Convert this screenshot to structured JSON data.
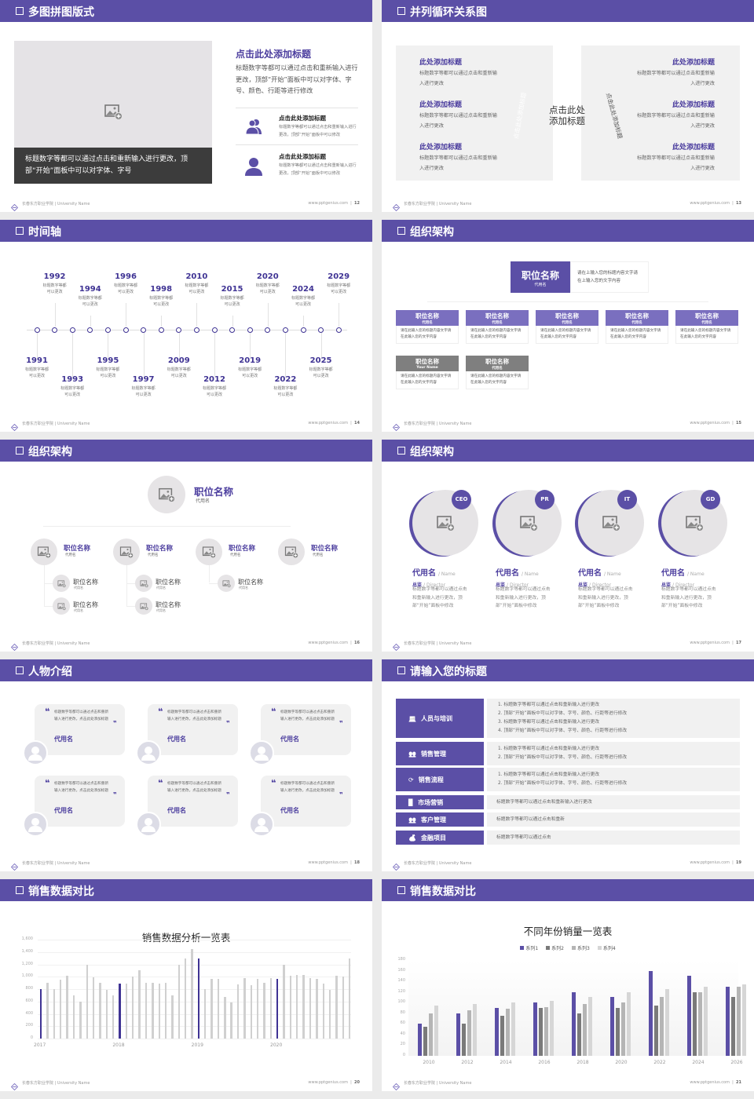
{
  "colors": {
    "header": "#5b4fa6",
    "accent_text": "#4b3d9e",
    "gray_box": "#7f7f7f",
    "panel": "#f1f1f1"
  },
  "footer": {
    "school": "长春东方职业学院 | University Name",
    "site": "www.pptgenius.com"
  },
  "slides": [
    {
      "title": "多图拼图版式",
      "page": "12",
      "caption": "标题数字等都可以通过点击和重新输入进行更改，顶部“开始”面板中可以对字体、字号",
      "heading": "点击此处添加标题",
      "paragraph": "标题数字等都可以通过点击和重新输入进行更改，顶部“开始”面板中可以对字体、字号、颜色、行距等进行修改",
      "items": [
        {
          "icon": "group-icon",
          "title": "点击此处添加标题",
          "desc": "标题数字等都可以通过点击和重新输入进行更改，顶部“开始”面板中可以修改"
        },
        {
          "icon": "person-icon",
          "title": "点击此处添加标题",
          "desc": "标题数字等都可以通过点击和重新输入进行更改，顶部“开始”面板中可以修改"
        }
      ]
    },
    {
      "title": "并列循环关系图",
      "page": "13",
      "center": "点击此处添加标题",
      "arc_left": "点击此处添加标题",
      "arc_right": "点击此处添加标题",
      "left_items": [
        {
          "title": "此处添加标题",
          "desc": "标题数字等都可以通过点击和重新输入进行更改"
        },
        {
          "title": "此处添加标题",
          "desc": "标题数字等都可以通过点击和重新输入进行更改"
        },
        {
          "title": "此处添加标题",
          "desc": "标题数字等都可以通过点击和重新输入进行更改"
        }
      ],
      "right_items": [
        {
          "title": "此处添加标题",
          "desc": "标题数字等都可以通过点击和重新输入进行更改"
        },
        {
          "title": "此处添加标题",
          "desc": "标题数字等都可以通过点击和重新输入进行更改"
        },
        {
          "title": "此处添加标题",
          "desc": "标题数字等都可以通过点击和重新输入进行更改"
        }
      ]
    },
    {
      "title": "时间轴",
      "page": "14",
      "events": [
        {
          "year": "1991",
          "desc": "标题数字等都可以更改"
        },
        {
          "year": "1992",
          "desc": "标题数字等都可以更改"
        },
        {
          "year": "1993",
          "desc": "标题数字等都可以更改"
        },
        {
          "year": "1994",
          "desc": "标题数字等都可以更改"
        },
        {
          "year": "1995",
          "desc": "标题数字等都可以更改"
        },
        {
          "year": "1996",
          "desc": "标题数字等都可以更改"
        },
        {
          "year": "1997",
          "desc": "标题数字等都可以更改"
        },
        {
          "year": "1998",
          "desc": "标题数字等都可以更改"
        },
        {
          "year": "2009",
          "desc": "标题数字等都可以更改"
        },
        {
          "year": "2010",
          "desc": "标题数字等都可以更改"
        },
        {
          "year": "2012",
          "desc": "标题数字等都可以更改"
        },
        {
          "year": "2015",
          "desc": "标题数字等都可以更改"
        },
        {
          "year": "2019",
          "desc": "标题数字等都可以更改"
        },
        {
          "year": "2020",
          "desc": "标题数字等都可以更改"
        },
        {
          "year": "2022",
          "desc": "标题数字等都可以更改"
        },
        {
          "year": "2024",
          "desc": "标题数字等都可以更改"
        },
        {
          "year": "2025",
          "desc": "标题数字等都可以更改"
        },
        {
          "year": "2029",
          "desc": "标题数字等都可以更改"
        }
      ]
    },
    {
      "title": "组织架构",
      "page": "15",
      "top": {
        "title": "职位名称",
        "sub": "代用名",
        "desc": "请在上输入您的标题内容文字请在上输入您的文字内容"
      },
      "boxes": [
        {
          "title": "职位名称",
          "sub": "代用名",
          "desc": "请在此输入您的标题内容文字请在此输入您的文字内容",
          "style": "purple"
        },
        {
          "title": "职位名称",
          "sub": "代用名",
          "desc": "请在此输入您的标题内容文字请在此输入您的文字内容",
          "style": "purple"
        },
        {
          "title": "职位名称",
          "sub": "代用名",
          "desc": "请在此输入您的标题内容文字请在此输入您的文字内容",
          "style": "purple"
        },
        {
          "title": "职位名称",
          "sub": "代用名",
          "desc": "请在此输入您的标题内容文字请在此输入您的文字内容",
          "style": "purple"
        },
        {
          "title": "职位名称",
          "sub": "代用名",
          "desc": "请在此输入您的标题内容文字请在此输入您的文字内容",
          "style": "purple"
        },
        {
          "title": "职位名称",
          "sub": "Your Name",
          "desc": "请在此输入您的标题内容文字请在此输入您的文字内容",
          "style": "gray"
        },
        {
          "title": "职位名称",
          "sub": "代用名",
          "desc": "请在此输入您的标题内容文字请在此输入您的文字内容",
          "style": "gray"
        }
      ]
    },
    {
      "title": "组织架构",
      "page": "16",
      "top": {
        "title": "职位名称",
        "sub": "代用名"
      },
      "level2": [
        {
          "title": "职位名称",
          "sub": "代用名",
          "children": [
            {
              "title": "职位名称",
              "sub": "代用名"
            },
            {
              "title": "职位名称",
              "sub": "代用名"
            }
          ]
        },
        {
          "title": "职位名称",
          "sub": "代用名",
          "children": [
            {
              "title": "职位名称",
              "sub": "代用名"
            },
            {
              "title": "职位名称",
              "sub": "代用名"
            }
          ]
        },
        {
          "title": "职位名称",
          "sub": "代用名",
          "children": [
            {
              "title": "职位名称",
              "sub": "代用名"
            }
          ]
        },
        {
          "title": "职位名称",
          "sub": "代用名",
          "children": []
        }
      ]
    },
    {
      "title": "组织架构",
      "page": "17",
      "members": [
        {
          "badge": "CEO",
          "name": "代用名",
          "name_en": "/ Name",
          "role": "总监",
          "role_en": "/  Director",
          "desc": "标题数字等都可以通过点击和重新输入进行更改，顶部“开始”面板中修改"
        },
        {
          "badge": "PR",
          "name": "代用名",
          "name_en": "/ Name",
          "role": "总监",
          "role_en": "/  Director",
          "desc": "标题数字等都可以通过点击和重新输入进行更改，顶部“开始”面板中修改"
        },
        {
          "badge": "IT",
          "name": "代用名",
          "name_en": "/ Name",
          "role": "总监",
          "role_en": "/  Director",
          "desc": "标题数字等都可以通过点击和重新输入进行更改，顶部“开始”面板中修改"
        },
        {
          "badge": "GD",
          "name": "代用名",
          "name_en": "/ Name",
          "role": "总监",
          "role_en": "/  Director",
          "desc": "标题数字等都可以通过点击和重新输入进行更改，顶部“开始”面板中修改"
        }
      ]
    },
    {
      "title": "人物介绍",
      "page": "18",
      "cards": [
        {
          "quote": "标题数字等都可以通过点击和重新输入进行更改，点击此处添加标题",
          "name": "代用名"
        },
        {
          "quote": "标题数字等都可以通过点击和重新输入进行更改，点击此处添加标题",
          "name": "代用名"
        },
        {
          "quote": "标题数字等都可以通过点击和重新输入进行更改，点击此处添加标题",
          "name": "代用名"
        },
        {
          "quote": "标题数字等都可以通过点击和重新输入进行更改，点击此处添加标题",
          "name": "代用名"
        },
        {
          "quote": "标题数字等都可以通过点击和重新输入进行更改，点击此处添加标题",
          "name": "代用名"
        },
        {
          "quote": "标题数字等都可以通过点击和重新输入进行更改，点击此处添加标题",
          "name": "代用名"
        }
      ]
    },
    {
      "title": "请输入您的标题",
      "page": "19",
      "rows": [
        {
          "icon": "training-icon",
          "label": "人员与培训",
          "lines": [
            "1.   标题数字等都可以通过点击和重新输入进行更改",
            "2.   顶部“开始”面板中可以对字体、字号、颜色、行距等进行修改",
            "3.   标题数字等都可以通过点击和重新输入进行更改",
            "4.   顶部“开始”面板中可以对字体、字号、颜色、行距等进行修改"
          ]
        },
        {
          "icon": "sales-manager-icon",
          "label": "销售管理",
          "lines": [
            "1.   标题数字等都可以通过点击和重新输入进行更改",
            "2.   顶部“开始”面板中可以对字体、字号、颜色、行距等进行修改"
          ]
        },
        {
          "icon": "process-cycle-icon",
          "label": "销售流程",
          "lines": [
            "1.   标题数字等都可以通过点击和重新输入进行更改",
            "2.   顶部“开始”面板中可以对字体、字号、颜色、行距等进行修改"
          ]
        },
        {
          "icon": "bar-chart-icon",
          "label": "市场营销",
          "lines": [
            "标题数字等都可以通过点击和重新输入进行更改"
          ]
        },
        {
          "icon": "customers-icon",
          "label": "客户管理",
          "lines": [
            "标题数字等都可以通过点击和重新"
          ]
        },
        {
          "icon": "finance-icon",
          "label": "金融项目",
          "lines": [
            "标题数字等都可以通过点击"
          ]
        }
      ]
    },
    {
      "title": "销售数据对比",
      "page": "20"
    },
    {
      "title": "销售数据对比",
      "page": "21"
    }
  ],
  "chart_data": [
    {
      "type": "bar",
      "title": "销售数据分析一览表",
      "xlabel": "",
      "ylabel": "",
      "ylim": [
        0,
        1600
      ],
      "yticks": [
        "0",
        "200",
        "400",
        "600",
        "800",
        "1,000",
        "1,200",
        "1,400",
        "1,600"
      ],
      "grid": true,
      "xtick_labels": [
        "2017",
        "2018",
        "2019",
        "2020"
      ],
      "highlight_color": "#3f3394",
      "bar_color": "#d0d0d0",
      "highlighted_indices": [
        0,
        12,
        24,
        36
      ],
      "values": [
        800,
        900,
        800,
        950,
        1020,
        700,
        600,
        1200,
        990,
        900,
        790,
        700,
        890,
        890,
        1000,
        1100,
        900,
        900,
        885,
        900,
        700,
        1200,
        1300,
        1450,
        1300,
        800,
        960,
        970,
        670,
        590,
        870,
        980,
        860,
        960,
        900,
        980,
        960,
        1200,
        1020,
        1030,
        1030,
        980,
        970,
        890,
        790,
        1020,
        1000,
        1300
      ]
    },
    {
      "type": "bar",
      "title": "不同年份销量一览表",
      "xlabel": "",
      "ylabel": "",
      "ylim": [
        0,
        180
      ],
      "yticks": [
        "0",
        "20",
        "40",
        "60",
        "80",
        "100",
        "120",
        "140",
        "160",
        "180"
      ],
      "grid": false,
      "legend": "top",
      "categories": [
        "2010",
        "2012",
        "2014",
        "2016",
        "2018",
        "2020",
        "2022",
        "2024",
        "2026"
      ],
      "series": [
        {
          "name": "系列1",
          "color": "#5b4fa6",
          "values": [
            60,
            80,
            90,
            100,
            120,
            110,
            160,
            150,
            130
          ]
        },
        {
          "name": "系列2",
          "color": "#7a7a7a",
          "values": [
            55,
            60,
            75,
            90,
            80,
            90,
            95,
            120,
            110
          ]
        },
        {
          "name": "系列3",
          "color": "#b5b5b5",
          "values": [
            80,
            85,
            88,
            92,
            98,
            100,
            110,
            120,
            130
          ]
        },
        {
          "name": "系列4",
          "color": "#d6d6d6",
          "values": [
            95,
            98,
            101,
            104,
            110,
            120,
            126,
            130,
            135
          ]
        }
      ]
    }
  ]
}
